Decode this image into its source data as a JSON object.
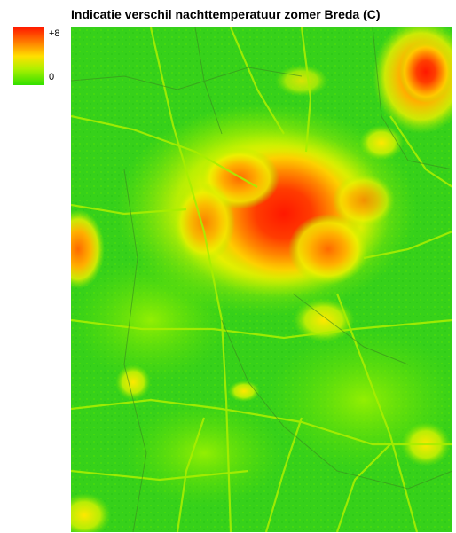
{
  "title": "Indicatie verschil nachttemperatuur zomer Breda (C)",
  "legend": {
    "max_label": "+8",
    "min_label": "0",
    "colors": {
      "high": "#ff1a00",
      "mid_high": "#ff7a00",
      "mid": "#ffe000",
      "mid_low": "#aef000",
      "low": "#32e000"
    }
  },
  "map": {
    "base_color": "#36d11a",
    "road_color": "#7fe000",
    "hotspot_color": "#ff2a00"
  }
}
